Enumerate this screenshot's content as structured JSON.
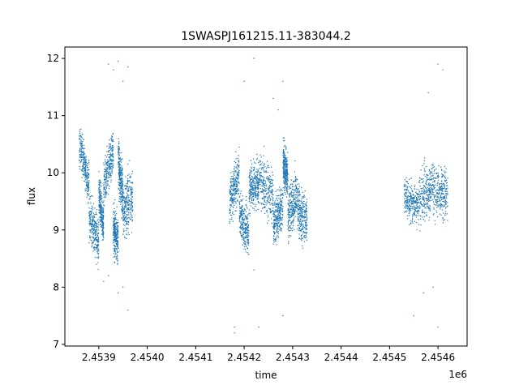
{
  "chart_data": {
    "type": "scatter",
    "title": "1SWASPJ161215.11-383044.2",
    "xlabel": "time",
    "ylabel": "flux",
    "x_offset_label": "1e6",
    "xlim": [
      2.45383,
      2.45466
    ],
    "ylim": [
      6.97,
      12.2
    ],
    "x_ticks": [
      2.4539,
      2.454,
      2.4541,
      2.4542,
      2.4543,
      2.4544,
      2.4545,
      2.4546
    ],
    "x_tick_labels": [
      "2.4539",
      "2.4540",
      "2.4541",
      "2.4542",
      "2.4543",
      "2.4544",
      "2.4545",
      "2.4546"
    ],
    "y_ticks": [
      7,
      8,
      9,
      10,
      11,
      12
    ],
    "y_tick_labels": [
      "7",
      "8",
      "9",
      "10",
      "11",
      "12"
    ],
    "grid": false,
    "marker_color": "#1f77b4",
    "segments": [
      {
        "x_start": 2.45386,
        "x_end": 2.45388,
        "y_start": 10.5,
        "y_end": 9.8,
        "spread": 0.35
      },
      {
        "x_start": 2.45388,
        "x_end": 2.4539,
        "y_start": 9.2,
        "y_end": 8.8,
        "spread": 0.4
      },
      {
        "x_start": 2.4539,
        "x_end": 2.45391,
        "y_start": 9.6,
        "y_end": 9.1,
        "spread": 0.35
      },
      {
        "x_start": 2.45391,
        "x_end": 2.45393,
        "y_start": 9.8,
        "y_end": 10.4,
        "spread": 0.4
      },
      {
        "x_start": 2.45393,
        "x_end": 2.45394,
        "y_start": 9.0,
        "y_end": 8.8,
        "spread": 0.4
      },
      {
        "x_start": 2.45394,
        "x_end": 2.45395,
        "y_start": 10.2,
        "y_end": 9.6,
        "spread": 0.45
      },
      {
        "x_start": 2.45395,
        "x_end": 2.45397,
        "y_start": 9.3,
        "y_end": 9.6,
        "spread": 0.5
      },
      {
        "x_start": 2.45417,
        "x_end": 2.45419,
        "y_start": 9.5,
        "y_end": 10.0,
        "spread": 0.4
      },
      {
        "x_start": 2.45419,
        "x_end": 2.45421,
        "y_start": 9.3,
        "y_end": 8.9,
        "spread": 0.4
      },
      {
        "x_start": 2.45421,
        "x_end": 2.45423,
        "y_start": 9.7,
        "y_end": 9.8,
        "spread": 0.4
      },
      {
        "x_start": 2.45423,
        "x_end": 2.45426,
        "y_start": 9.9,
        "y_end": 9.6,
        "spread": 0.45
      },
      {
        "x_start": 2.45426,
        "x_end": 2.45428,
        "y_start": 9.1,
        "y_end": 9.4,
        "spread": 0.4
      },
      {
        "x_start": 2.45428,
        "x_end": 2.45429,
        "y_start": 10.2,
        "y_end": 9.9,
        "spread": 0.4
      },
      {
        "x_start": 2.45429,
        "x_end": 2.45431,
        "y_start": 9.3,
        "y_end": 9.6,
        "spread": 0.45
      },
      {
        "x_start": 2.45431,
        "x_end": 2.45433,
        "y_start": 9.3,
        "y_end": 9.2,
        "spread": 0.45
      },
      {
        "x_start": 2.45453,
        "x_end": 2.45456,
        "y_start": 9.6,
        "y_end": 9.4,
        "spread": 0.35
      },
      {
        "x_start": 2.45456,
        "x_end": 2.45459,
        "y_start": 9.5,
        "y_end": 9.8,
        "spread": 0.45
      },
      {
        "x_start": 2.45459,
        "x_end": 2.45462,
        "y_start": 9.7,
        "y_end": 9.6,
        "spread": 0.45
      }
    ],
    "outliers": [
      [
        2.45391,
        8.1
      ],
      [
        2.45392,
        11.9
      ],
      [
        2.45393,
        11.8
      ],
      [
        2.45394,
        7.9
      ],
      [
        2.45394,
        11.95
      ],
      [
        2.45395,
        11.6
      ],
      [
        2.45396,
        7.6
      ],
      [
        2.45396,
        11.85
      ],
      [
        2.45392,
        8.2
      ],
      [
        2.45395,
        8.0
      ],
      [
        2.45418,
        7.3
      ],
      [
        2.45418,
        7.2
      ],
      [
        2.45422,
        12.0
      ],
      [
        2.45423,
        7.3
      ],
      [
        2.4542,
        11.6
      ],
      [
        2.45426,
        11.3
      ],
      [
        2.45427,
        11.1
      ],
      [
        2.45428,
        11.6
      ],
      [
        2.45428,
        7.5
      ],
      [
        2.45422,
        8.3
      ],
      [
        2.4546,
        11.9
      ],
      [
        2.4546,
        7.3
      ],
      [
        2.45458,
        11.4
      ],
      [
        2.45457,
        7.9
      ],
      [
        2.45459,
        8.0
      ],
      [
        2.45455,
        7.5
      ],
      [
        2.45461,
        11.8
      ]
    ]
  }
}
